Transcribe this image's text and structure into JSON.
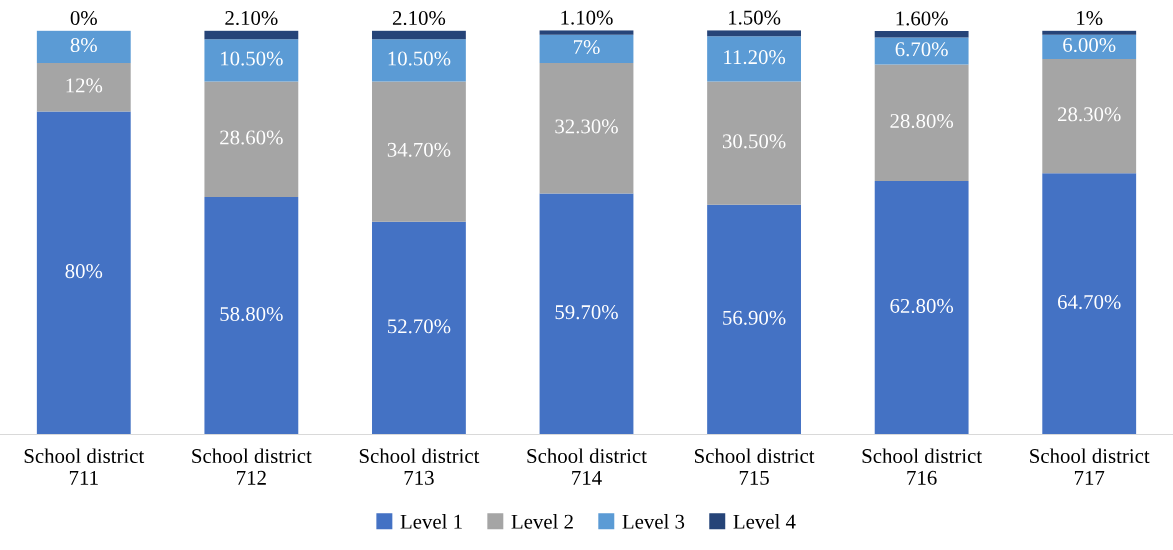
{
  "chart_data": {
    "type": "bar",
    "stacked": true,
    "legend": "bottom",
    "grid": false,
    "categories": [
      "School district\n711",
      "School district\n712",
      "School district\n713",
      "School district\n714",
      "School district\n715",
      "School district\n716",
      "School district\n717"
    ],
    "series": [
      {
        "name": "Level 1",
        "color": "#4472c4",
        "values": [
          80,
          58.8,
          52.7,
          59.7,
          56.9,
          62.8,
          64.7
        ],
        "value_labels": [
          "80%",
          "58.80%",
          "52.70%",
          "59.70%",
          "56.90%",
          "62.80%",
          "64.70%"
        ]
      },
      {
        "name": "Level 2",
        "color": "#a5a5a5",
        "values": [
          12,
          28.6,
          34.7,
          32.3,
          30.5,
          28.8,
          28.3
        ],
        "value_labels": [
          "12%",
          "28.60%",
          "34.70%",
          "32.30%",
          "30.50%",
          "28.80%",
          "28.30%"
        ]
      },
      {
        "name": "Level 3",
        "color": "#5b9bd5",
        "values": [
          8,
          10.5,
          10.5,
          7,
          11.2,
          6.7,
          6.0
        ],
        "value_labels": [
          "8%",
          "10.50%",
          "10.50%",
          "7%",
          "11.20%",
          "6.70%",
          "6.00%"
        ]
      },
      {
        "name": "Level 4",
        "color": "#264478",
        "values": [
          0,
          2.1,
          2.1,
          1.1,
          1.5,
          1.6,
          1
        ],
        "value_labels": [
          "0%",
          "2.10%",
          "2.10%",
          "1.10%",
          "1.50%",
          "1.60%",
          "1%"
        ]
      }
    ]
  }
}
